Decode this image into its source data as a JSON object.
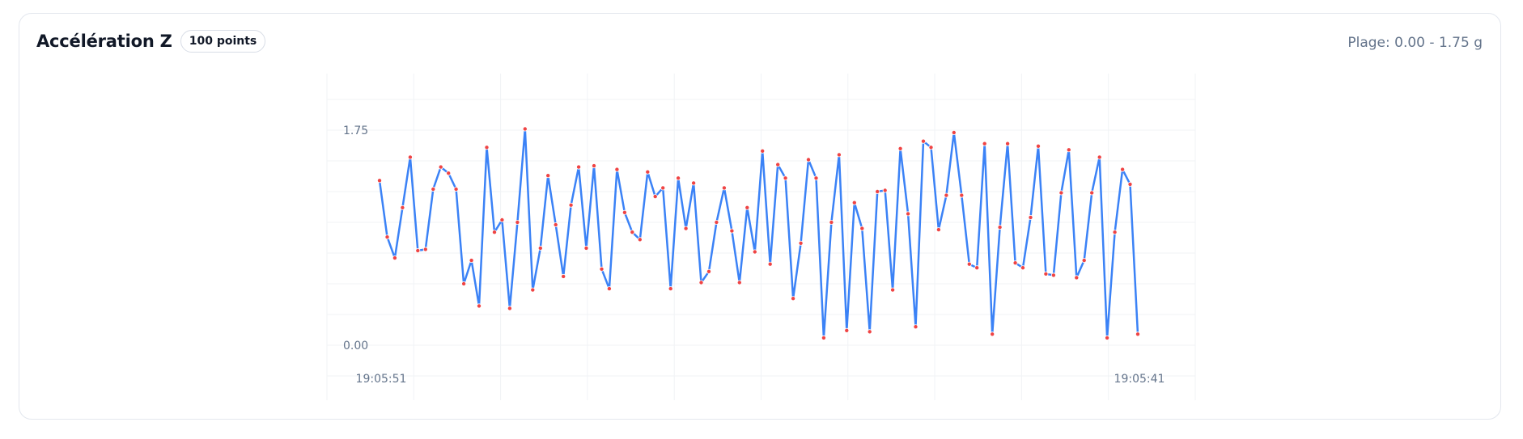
{
  "card": {
    "title": "Accélération Z",
    "badge": "100 points",
    "range_text": "Plage: 0.00 - 1.75 g"
  },
  "chart_data": {
    "type": "line",
    "title": "Accélération Z",
    "xlabel": "",
    "ylabel": "",
    "ylim": [
      0,
      1.75
    ],
    "y_ticks": [
      "1.75",
      "0.00"
    ],
    "x_ticks": [
      "19:05:51",
      "19:05:41"
    ],
    "grid": true,
    "legend": "none",
    "line_color": "#3b82f6",
    "point_color": "#ef4444",
    "values": [
      1.34,
      0.88,
      0.71,
      1.12,
      1.53,
      0.77,
      0.78,
      1.27,
      1.45,
      1.4,
      1.27,
      0.5,
      0.69,
      0.32,
      1.61,
      0.92,
      1.02,
      0.3,
      1.0,
      1.76,
      0.45,
      0.79,
      1.38,
      0.98,
      0.56,
      1.14,
      1.45,
      0.79,
      1.46,
      0.62,
      0.46,
      1.43,
      1.08,
      0.92,
      0.86,
      1.41,
      1.21,
      1.28,
      0.46,
      1.36,
      0.95,
      1.32,
      0.51,
      0.6,
      1.0,
      1.28,
      0.93,
      0.51,
      1.12,
      0.76,
      1.58,
      0.66,
      1.47,
      1.36,
      0.38,
      0.83,
      1.51,
      1.36,
      0.06,
      1.0,
      1.55,
      0.12,
      1.16,
      0.95,
      0.11,
      1.25,
      1.26,
      0.45,
      1.6,
      1.07,
      0.15,
      1.66,
      1.61,
      0.94,
      1.22,
      1.73,
      1.22,
      0.66,
      0.63,
      1.64,
      0.09,
      0.96,
      1.64,
      0.67,
      0.63,
      1.04,
      1.62,
      0.58,
      0.57,
      1.24,
      1.59,
      0.55,
      0.69,
      1.24,
      1.53,
      0.06,
      0.92,
      1.43,
      1.31,
      0.09
    ]
  }
}
